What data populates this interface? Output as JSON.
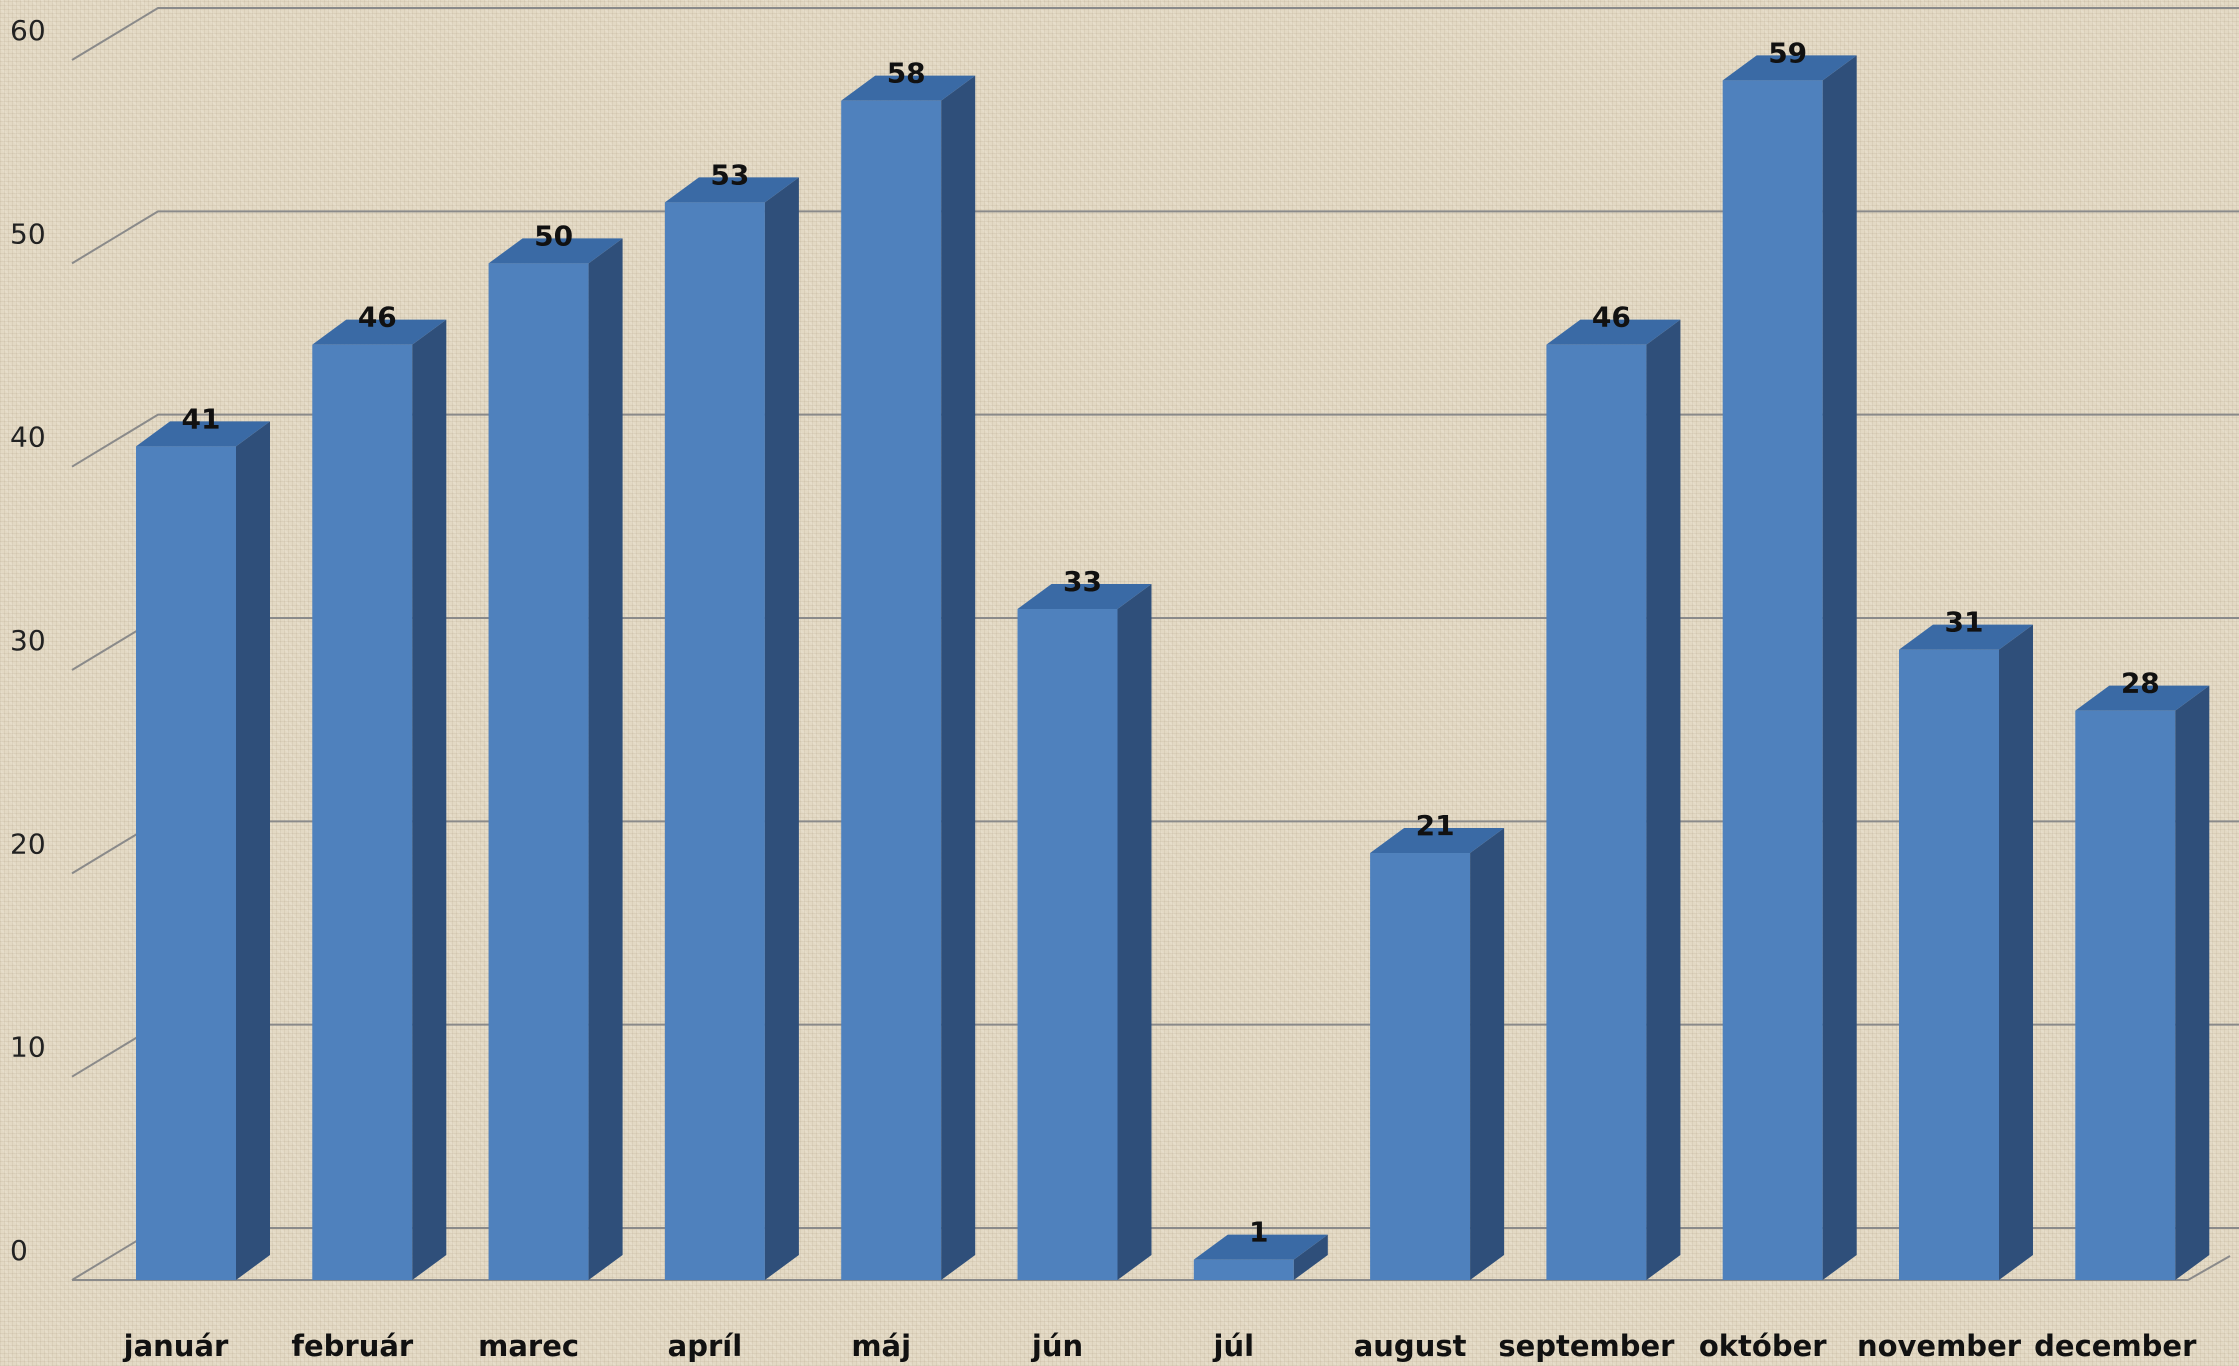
{
  "chart_data": {
    "type": "bar",
    "style": "3d-column",
    "categories": [
      "január",
      "február",
      "marec",
      "apríl",
      "máj",
      "jún",
      "júl",
      "august",
      "september",
      "október",
      "november",
      "december"
    ],
    "values": [
      41,
      46,
      50,
      53,
      58,
      33,
      1,
      21,
      46,
      59,
      31,
      28
    ],
    "data_labels": [
      "41",
      "46",
      "50",
      "53",
      "58",
      "33",
      "1",
      "21",
      "46",
      "59",
      "31",
      "28"
    ],
    "y_ticks": [
      0,
      10,
      20,
      30,
      40,
      50,
      60
    ],
    "y_tick_labels": [
      "0",
      "10",
      "20",
      "30",
      "40",
      "50",
      "60"
    ],
    "ylim": [
      0,
      60
    ],
    "title": "",
    "xlabel": "",
    "ylabel": "",
    "grid": true,
    "legend": "none",
    "colors": {
      "bar_front": "#4f81bd",
      "bar_side": "#2f4f7a",
      "bar_top": "#3a6aa5",
      "gridline": "#8a8a8a"
    }
  }
}
